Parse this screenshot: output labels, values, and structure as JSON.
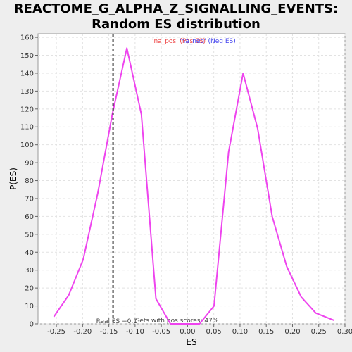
{
  "chart_data": {
    "type": "line",
    "title_line1": "REACTOME_G_ALPHA_Z_SIGNALLING_EVENTS:",
    "title_line2": "Random ES distribution",
    "xlabel": "ES",
    "ylabel": "P(ES)",
    "xlim": [
      -0.285,
      0.3
    ],
    "ylim": [
      0,
      162
    ],
    "grid": true,
    "x_ticks": [
      -0.25,
      -0.2,
      -0.15,
      -0.1,
      -0.05,
      0.0,
      0.05,
      0.1,
      0.15,
      0.2,
      0.25,
      0.3
    ],
    "x_tick_labels": [
      "-0.25",
      "-0.20",
      "-0.15",
      "-0.10",
      "-0.05",
      "0.00",
      "0.05",
      "0.10",
      "0.15",
      "0.20",
      "0.25",
      "0.30"
    ],
    "y_ticks": [
      0,
      10,
      20,
      30,
      40,
      50,
      60,
      70,
      80,
      90,
      100,
      110,
      120,
      130,
      140,
      150,
      160
    ],
    "y_tick_labels": [
      "0",
      "10",
      "20",
      "30",
      "40",
      "50",
      "60",
      "70",
      "80",
      "90",
      "100",
      "110",
      "120",
      "130",
      "140",
      "150",
      "160"
    ],
    "series": [
      {
        "color": "#ee44ee",
        "x": [
          -0.2548,
          -0.2265,
          -0.1988,
          -0.1711,
          -0.1434,
          -0.1157,
          -0.088,
          -0.0603,
          -0.0326,
          -0.0049,
          0.0228,
          0.0505,
          0.0782,
          0.1059,
          0.1336,
          0.1613,
          0.189,
          0.2167,
          0.2444,
          0.2789
        ],
        "y": [
          4,
          16,
          36,
          73,
          117,
          154,
          117,
          14,
          0,
          0,
          0,
          10,
          96,
          140,
          109,
          60,
          32,
          15,
          6,
          2
        ]
      }
    ],
    "real_es": -0.142,
    "real_es_label": "Real ES −0.1",
    "pos_scores_label": "Sets with pos scores: 47%",
    "legend": [
      {
        "text": "'na_pos' (Pos ES)",
        "color": "#ee4444"
      },
      {
        "text": "'na_neg' (Neg ES)",
        "color": "#4444ee"
      }
    ],
    "colors": {
      "line": "#ee44ee",
      "real_es_line": "#333333",
      "grid": "#e2e2e2",
      "plot_bg": "#ffffff"
    }
  }
}
